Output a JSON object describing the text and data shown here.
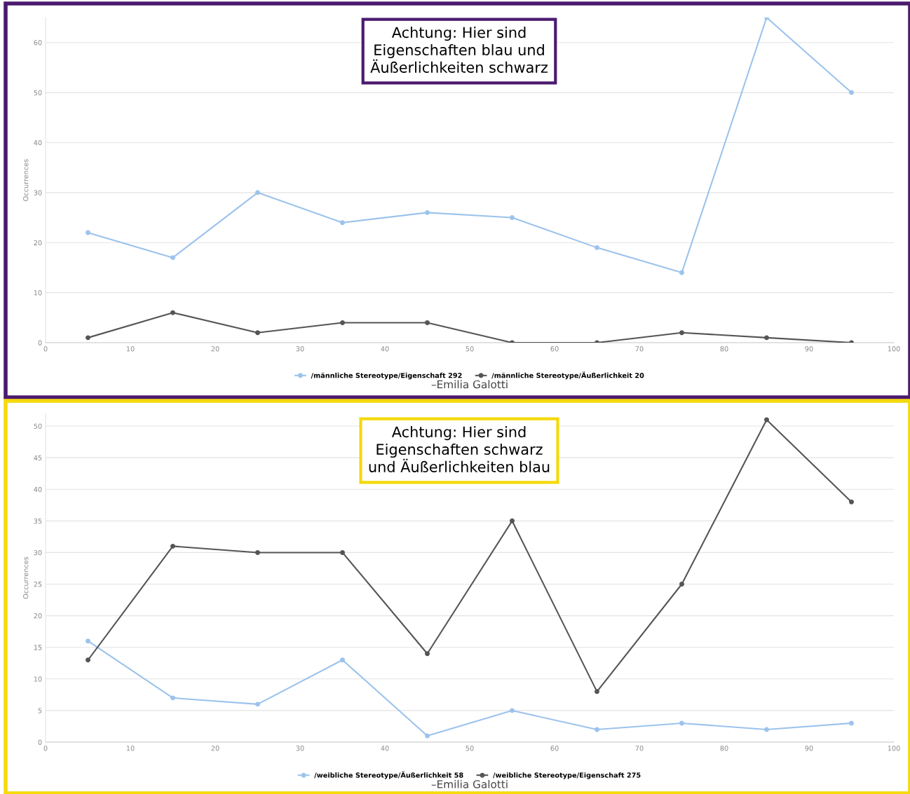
{
  "chart_data": [
    {
      "type": "line",
      "ylabel": "Occurrences",
      "x": [
        5,
        15,
        25,
        35,
        45,
        55,
        65,
        75,
        85,
        95
      ],
      "xlim": [
        0,
        100
      ],
      "xticks": [
        0,
        10,
        20,
        30,
        40,
        50,
        60,
        70,
        80,
        90,
        100
      ],
      "ylim": [
        0,
        65
      ],
      "yticks": [
        0,
        10,
        20,
        30,
        40,
        50,
        60
      ],
      "grid": "y",
      "legend": "bottom",
      "marker": "circle",
      "line_style": "solid",
      "series": [
        {
          "name": "/männliche Stereotype/Eigenschaft 292",
          "color": "#9cc3ec",
          "values": [
            22,
            17,
            30,
            24,
            26,
            25,
            19,
            14,
            65,
            50
          ]
        },
        {
          "name": "/männliche Stereotype/Äußerlichkeit 20",
          "color": "#555555",
          "values": [
            1,
            6,
            2,
            4,
            4,
            0,
            0,
            2,
            1,
            0
          ]
        }
      ],
      "annotations": [
        "Achtung: Hier sind\nEigenschaften blau und\nÄußerlichkeiten schwarz",
        "–Emilia Galotti"
      ]
    },
    {
      "type": "line",
      "ylabel": "Occurrences",
      "x": [
        5,
        15,
        25,
        35,
        45,
        55,
        65,
        75,
        85,
        95
      ],
      "xlim": [
        0,
        100
      ],
      "xticks": [
        0,
        10,
        20,
        30,
        40,
        50,
        60,
        70,
        80,
        90,
        100
      ],
      "ylim": [
        0,
        52
      ],
      "yticks": [
        0,
        5,
        10,
        15,
        20,
        25,
        30,
        35,
        40,
        45,
        50
      ],
      "grid": "y",
      "legend": "bottom",
      "marker": "circle",
      "line_style": "solid",
      "series": [
        {
          "name": "/weibliche Stereotype/Äußerlichkeit 58",
          "color": "#9cc3ec",
          "values": [
            16,
            7,
            6,
            13,
            1,
            5,
            2,
            3,
            2,
            3
          ]
        },
        {
          "name": "/weibliche Stereotype/Eigenschaft 275",
          "color": "#555555",
          "values": [
            13,
            31,
            30,
            30,
            14,
            35,
            8,
            25,
            51,
            38
          ]
        }
      ],
      "annotations": [
        "Achtung: Hier sind\nEigenschaften schwarz\nund Äußerlichkeiten blau",
        "–Emilia Galotti"
      ]
    }
  ]
}
